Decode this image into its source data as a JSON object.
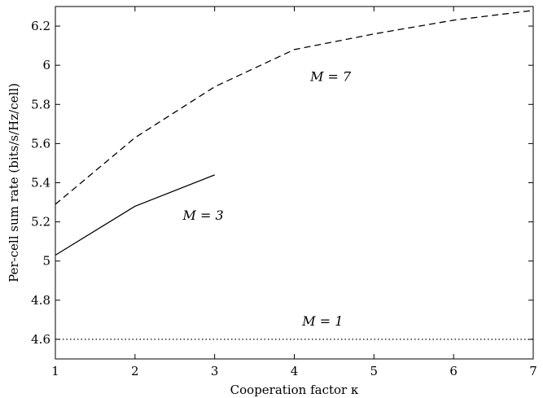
{
  "chart_data": {
    "type": "line",
    "xlabel": "Cooperation factor κ",
    "ylabel": "Per-cell sum rate (bits/s/Hz/cell)",
    "xlim": [
      1,
      7
    ],
    "ylim": [
      4.5,
      6.3
    ],
    "xticks": [
      "1",
      "2",
      "3",
      "4",
      "5",
      "6",
      "7"
    ],
    "yticks": [
      "4.6",
      "4.8",
      "5",
      "5.2",
      "5.4",
      "5.6",
      "5.8",
      "6",
      "6.2"
    ],
    "grid": false,
    "series": [
      {
        "label": "M = 7",
        "style": "dashed",
        "color": "#000000",
        "x": [
          1,
          2,
          3,
          4,
          5,
          6,
          7
        ],
        "y": [
          5.29,
          5.63,
          5.89,
          6.08,
          6.16,
          6.23,
          6.28
        ]
      },
      {
        "label": "M = 3",
        "style": "solid",
        "color": "#000000",
        "x": [
          1,
          2,
          3
        ],
        "y": [
          5.03,
          5.28,
          5.44
        ]
      },
      {
        "label": "M = 1",
        "style": "dotted",
        "color": "#000000",
        "x": [
          1,
          7
        ],
        "y": [
          4.6,
          4.6
        ]
      }
    ],
    "annotations": [
      {
        "text": "M = 7",
        "x": 4.2,
        "y": 5.92
      },
      {
        "text": "M = 3",
        "x": 2.6,
        "y": 5.21
      },
      {
        "text": "M = 1",
        "x": 4.1,
        "y": 4.67
      }
    ]
  }
}
